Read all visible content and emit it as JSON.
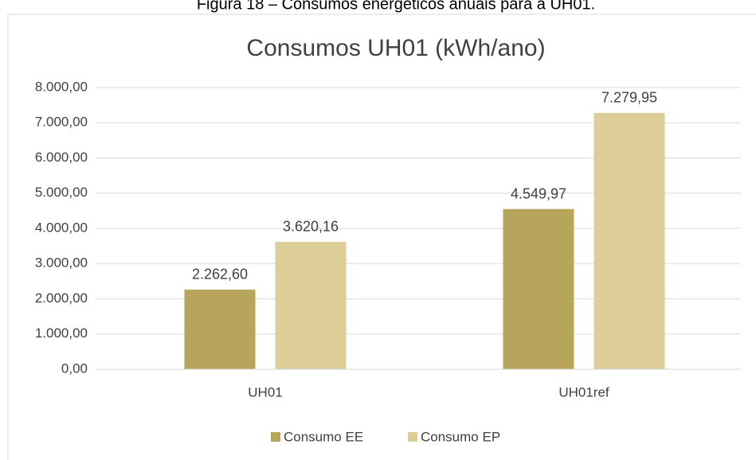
{
  "caption": "Figura 18 – Consumos energéticos anuais para a UH01.",
  "chart_data": {
    "type": "bar",
    "title": "Consumos UH01 (kWh/ano)",
    "categories": [
      "UH01",
      "UH01ref"
    ],
    "series": [
      {
        "name": "Consumo EE",
        "color": "#b8a55c",
        "values": [
          2262.6,
          4549.97
        ],
        "value_labels": [
          "2.262,60",
          "4.549,97"
        ]
      },
      {
        "name": "Consumo EP",
        "color": "#dccd99",
        "values": [
          3620.16,
          7279.95
        ],
        "value_labels": [
          "3.620,16",
          "7.279,95"
        ]
      }
    ],
    "ylim": [
      0,
      8000
    ],
    "yticks": [
      {
        "value": 0,
        "label": "0,00"
      },
      {
        "value": 1000,
        "label": "1.000,00"
      },
      {
        "value": 2000,
        "label": "2.000,00"
      },
      {
        "value": 3000,
        "label": "3.000,00"
      },
      {
        "value": 4000,
        "label": "4.000,00"
      },
      {
        "value": 5000,
        "label": "5.000,00"
      },
      {
        "value": 6000,
        "label": "6.000,00"
      },
      {
        "value": 7000,
        "label": "7.000,00"
      },
      {
        "value": 8000,
        "label": "8.000,00"
      }
    ],
    "grid": true,
    "legend": "bottom"
  }
}
